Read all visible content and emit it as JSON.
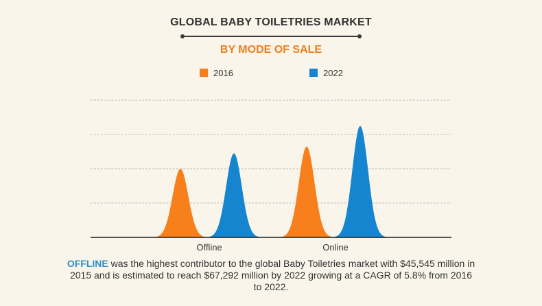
{
  "header": {
    "title": "GLOBAL BABY TOILETRIES MARKET",
    "subtitle": "BY MODE OF SALE"
  },
  "colors": {
    "series_2016": "#f7801c",
    "series_2022": "#1585cf",
    "accent_orange": "#f07d1a",
    "accent_blue": "#2e8fc8"
  },
  "chart_data": {
    "type": "area",
    "categories": [
      "Offline",
      "Online"
    ],
    "series": [
      {
        "name": "2016",
        "values": [
          20,
          26.5
        ]
      },
      {
        "name": "2022",
        "values": [
          24.5,
          32.5
        ]
      }
    ],
    "ylim": [
      0,
      40
    ],
    "grid": true,
    "legend": "top-center"
  },
  "caption": {
    "highlight": "OFFLINE",
    "text": " was the highest contributor to the global Baby Toiletries market with $45,545 million in 2015 and is estimated to reach $67,292 million by 2022 growing at a CAGR of 5.8% from 2016 to 2022."
  }
}
